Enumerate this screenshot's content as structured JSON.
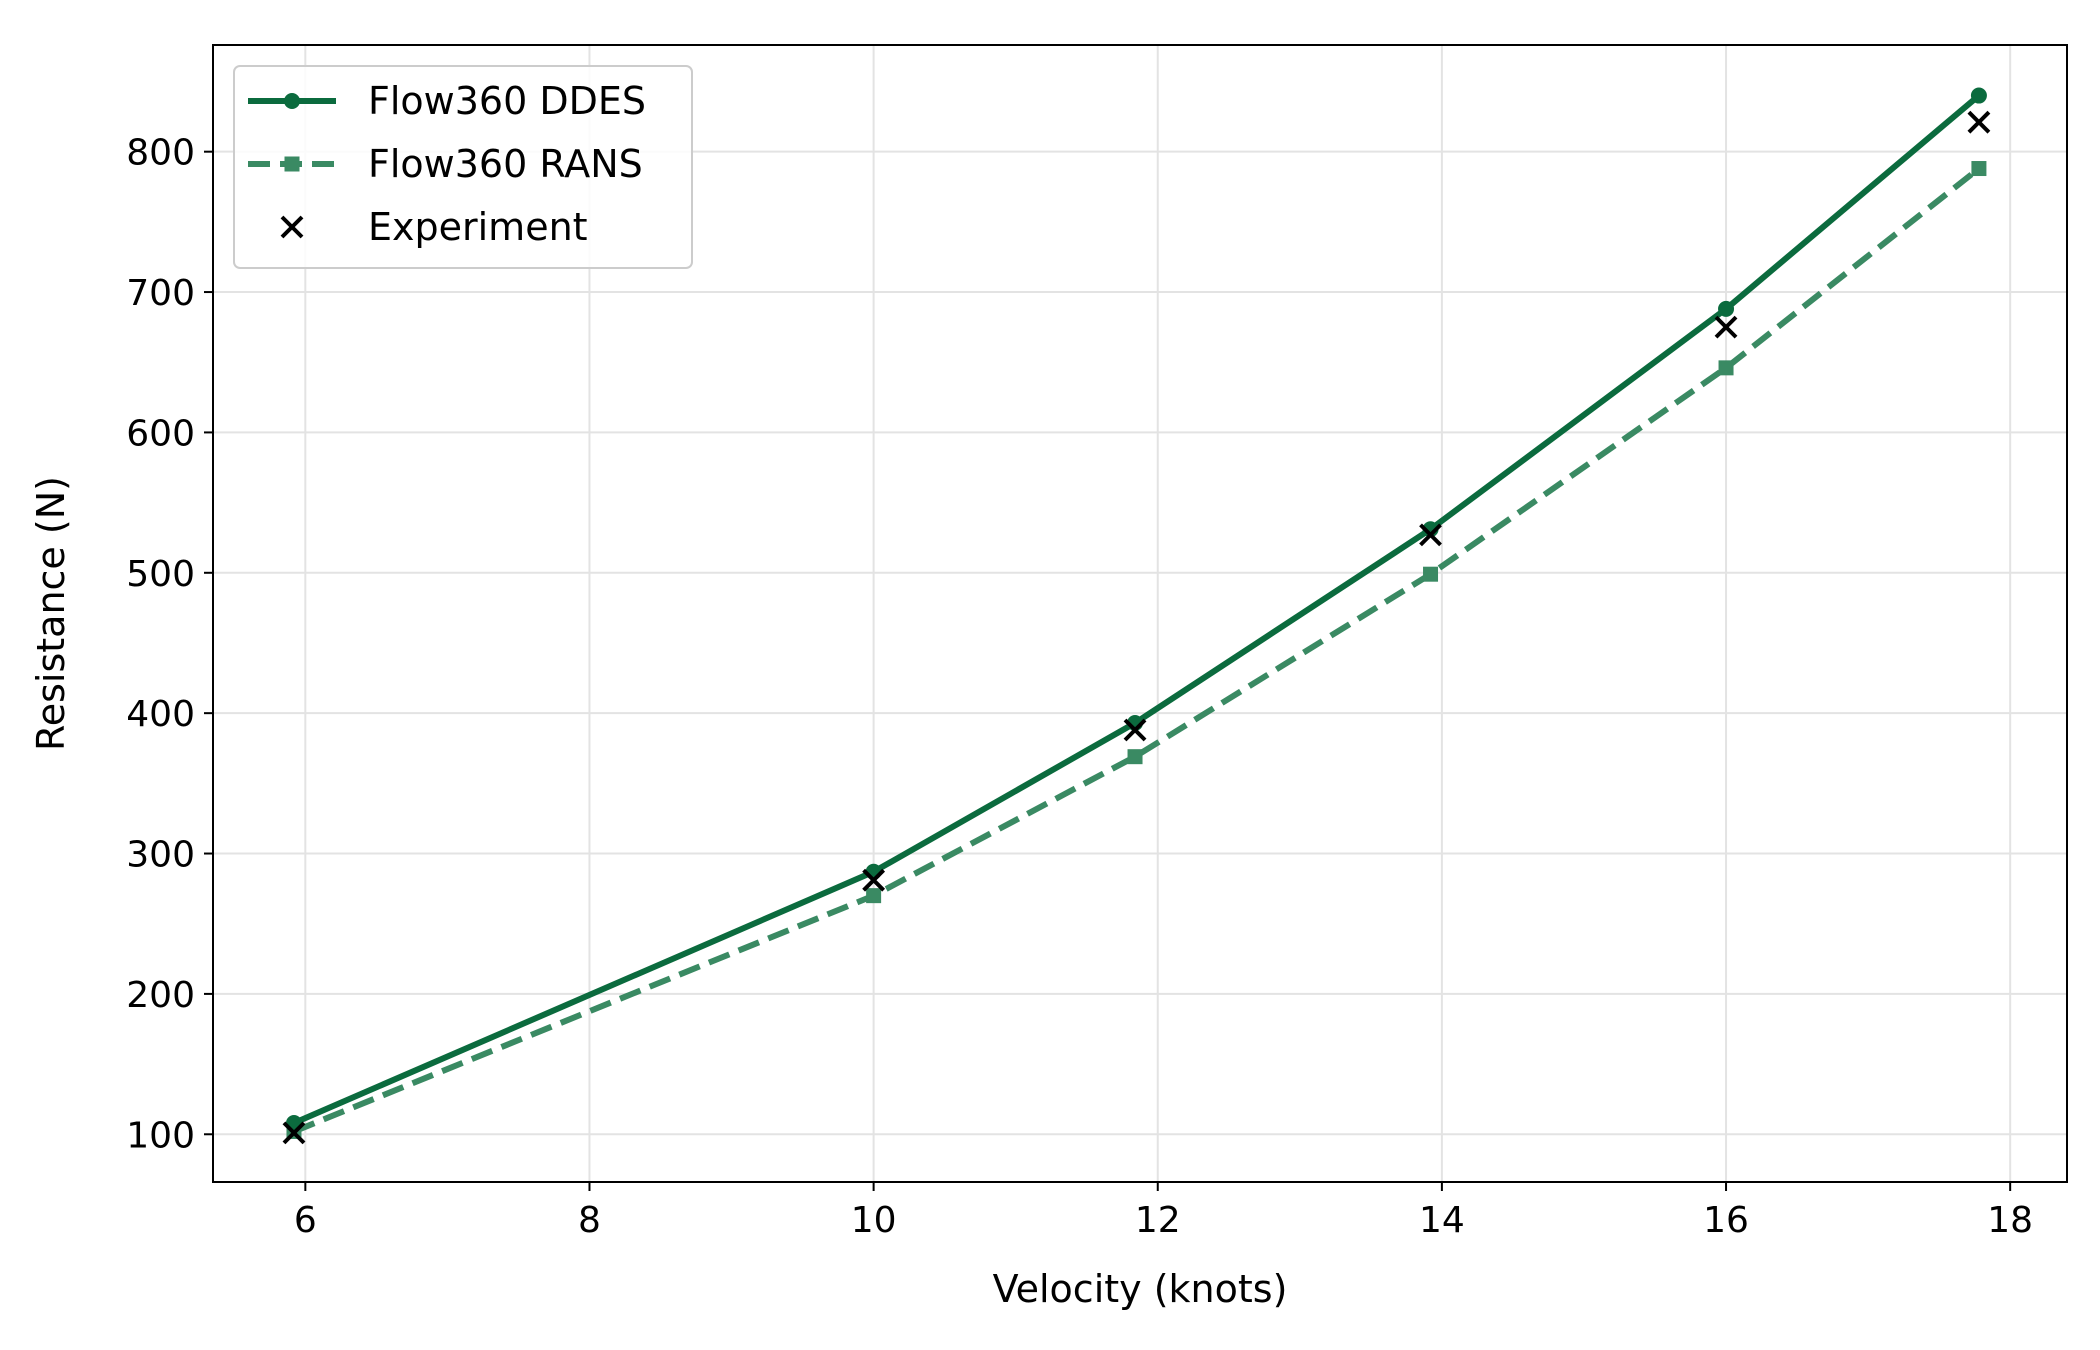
{
  "chart_data": {
    "type": "line",
    "title": "",
    "xlabel": "Velocity (knots)",
    "ylabel": "Resistance (N)",
    "xlim": [
      5.35,
      18.4
    ],
    "ylim": [
      66,
      876
    ],
    "xticks": [
      6,
      8,
      10,
      12,
      14,
      16,
      18
    ],
    "yticks": [
      100,
      200,
      300,
      400,
      500,
      600,
      700,
      800
    ],
    "grid": true,
    "legend_position": "top-left",
    "series": [
      {
        "name": "Flow360 DDES",
        "style": "solid",
        "marker": "circle",
        "color": "#0b6b3e",
        "x": [
          5.92,
          10.0,
          11.84,
          13.92,
          16.0,
          17.78
        ],
        "y": [
          108,
          287,
          393,
          531,
          688,
          840
        ]
      },
      {
        "name": "Flow360 RANS",
        "style": "dashed",
        "marker": "square",
        "color": "#3a8a63",
        "x": [
          5.92,
          10.0,
          11.84,
          13.92,
          16.0,
          17.78
        ],
        "y": [
          102,
          270,
          369,
          499,
          646,
          788
        ]
      },
      {
        "name": "Experiment",
        "style": "none",
        "marker": "x",
        "color": "#000000",
        "x": [
          5.92,
          10.0,
          11.84,
          13.92,
          16.0,
          17.78
        ],
        "y": [
          101,
          281,
          388,
          527,
          675,
          821
        ]
      }
    ]
  }
}
